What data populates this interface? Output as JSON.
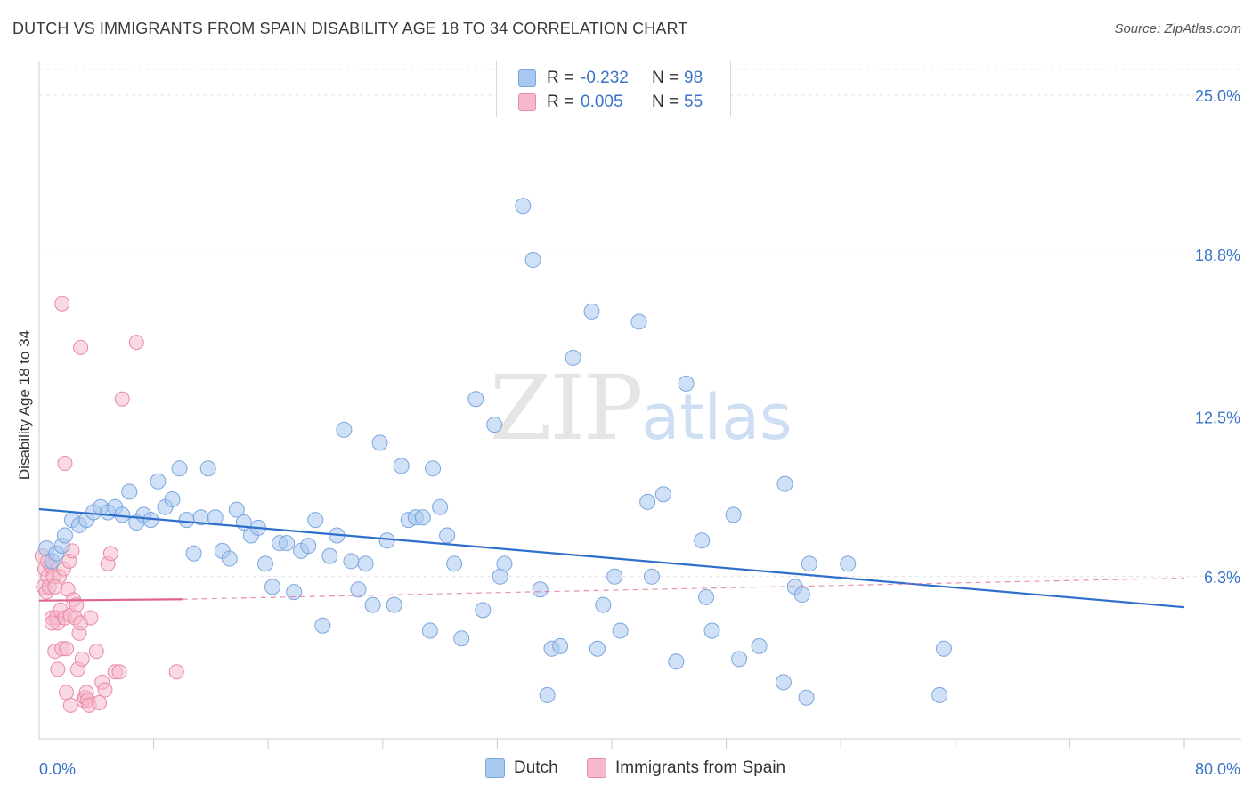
{
  "title": "DUTCH VS IMMIGRANTS FROM SPAIN DISABILITY AGE 18 TO 34 CORRELATION CHART",
  "source": "Source: ZipAtlas.com",
  "watermark": {
    "zip": "ZIP",
    "atlas": "atlas"
  },
  "legend": {
    "dutch": {
      "r_label": "R =",
      "r_value": "-0.232",
      "n_label": "N =",
      "n_value": "98"
    },
    "spain": {
      "r_label": "R =",
      "r_value": "0.005",
      "n_label": "N =",
      "n_value": "55"
    }
  },
  "bottom_legend": {
    "dutch": "Dutch",
    "spain": "Immigrants from Spain"
  },
  "colors": {
    "dutch_fill": "#a9c8f0",
    "dutch_stroke": "#7aa6de",
    "dutch_line": "#2f6fcc",
    "spain_fill": "#f6b9cc",
    "spain_stroke": "#e88aa6",
    "spain_line": "#e0628a",
    "grid": "#e3e3e3",
    "axis_text": "#3a74c9"
  },
  "chart_data": {
    "type": "scatter",
    "title": "DUTCH VS IMMIGRANTS FROM SPAIN DISABILITY AGE 18 TO 34 CORRELATION CHART",
    "xlabel": "",
    "ylabel": "Disability Age 18 to 34",
    "xlim": [
      0,
      80
    ],
    "ylim": [
      0,
      26.0
    ],
    "x_tick_labels": [
      "0.0%",
      "80.0%"
    ],
    "y_ticks": [
      6.3,
      12.5,
      18.8,
      25.0
    ],
    "y_tick_labels": [
      "6.3%",
      "12.5%",
      "18.8%",
      "25.0%"
    ],
    "series": [
      {
        "name": "Dutch",
        "points": [
          [
            0.5,
            7.4
          ],
          [
            0.9,
            6.9
          ],
          [
            1.2,
            7.2
          ],
          [
            1.6,
            7.5
          ],
          [
            1.8,
            7.9
          ],
          [
            2.3,
            8.5
          ],
          [
            2.8,
            8.3
          ],
          [
            3.3,
            8.5
          ],
          [
            3.8,
            8.8
          ],
          [
            4.3,
            9.0
          ],
          [
            4.8,
            8.8
          ],
          [
            5.3,
            9.0
          ],
          [
            5.8,
            8.7
          ],
          [
            6.3,
            9.6
          ],
          [
            6.8,
            8.4
          ],
          [
            7.3,
            8.7
          ],
          [
            7.8,
            8.5
          ],
          [
            8.3,
            10.0
          ],
          [
            8.8,
            9.0
          ],
          [
            9.3,
            9.3
          ],
          [
            9.8,
            10.5
          ],
          [
            10.3,
            8.5
          ],
          [
            10.8,
            7.2
          ],
          [
            11.3,
            8.6
          ],
          [
            11.8,
            10.5
          ],
          [
            12.3,
            8.6
          ],
          [
            12.8,
            7.3
          ],
          [
            13.3,
            7.0
          ],
          [
            13.8,
            8.9
          ],
          [
            14.3,
            8.4
          ],
          [
            14.8,
            7.9
          ],
          [
            15.3,
            8.2
          ],
          [
            15.8,
            6.8
          ],
          [
            16.3,
            5.9
          ],
          [
            16.8,
            7.6
          ],
          [
            17.3,
            7.6
          ],
          [
            17.8,
            5.7
          ],
          [
            18.3,
            7.3
          ],
          [
            18.8,
            7.5
          ],
          [
            19.3,
            8.5
          ],
          [
            19.8,
            4.4
          ],
          [
            20.3,
            7.1
          ],
          [
            20.8,
            7.9
          ],
          [
            21.3,
            12.0
          ],
          [
            21.8,
            6.9
          ],
          [
            22.3,
            5.8
          ],
          [
            22.8,
            6.8
          ],
          [
            23.3,
            5.2
          ],
          [
            23.8,
            11.5
          ],
          [
            24.3,
            7.7
          ],
          [
            24.8,
            5.2
          ],
          [
            25.3,
            10.6
          ],
          [
            25.8,
            8.5
          ],
          [
            26.3,
            8.6
          ],
          [
            26.8,
            8.6
          ],
          [
            27.3,
            4.2
          ],
          [
            27.5,
            10.5
          ],
          [
            28.0,
            9.0
          ],
          [
            28.5,
            7.9
          ],
          [
            29.0,
            6.8
          ],
          [
            29.5,
            3.9
          ],
          [
            30.5,
            13.2
          ],
          [
            31.0,
            5.0
          ],
          [
            31.8,
            12.2
          ],
          [
            32.2,
            6.3
          ],
          [
            32.5,
            6.8
          ],
          [
            33.8,
            20.7
          ],
          [
            34.5,
            18.6
          ],
          [
            35.0,
            5.8
          ],
          [
            35.5,
            1.7
          ],
          [
            35.8,
            3.5
          ],
          [
            36.4,
            3.6
          ],
          [
            37.3,
            14.8
          ],
          [
            38.6,
            16.6
          ],
          [
            39.0,
            3.5
          ],
          [
            39.4,
            5.2
          ],
          [
            40.2,
            6.3
          ],
          [
            40.6,
            4.2
          ],
          [
            41.9,
            16.2
          ],
          [
            42.5,
            9.2
          ],
          [
            42.8,
            6.3
          ],
          [
            43.6,
            9.5
          ],
          [
            44.5,
            3.0
          ],
          [
            45.2,
            13.8
          ],
          [
            46.3,
            7.7
          ],
          [
            46.6,
            5.5
          ],
          [
            47.0,
            4.2
          ],
          [
            48.5,
            8.7
          ],
          [
            48.9,
            3.1
          ],
          [
            50.3,
            3.6
          ],
          [
            52.0,
            2.2
          ],
          [
            52.1,
            9.9
          ],
          [
            52.8,
            5.9
          ],
          [
            53.3,
            5.6
          ],
          [
            53.6,
            1.6
          ],
          [
            53.8,
            6.8
          ],
          [
            56.5,
            6.8
          ],
          [
            62.9,
            1.7
          ],
          [
            63.2,
            3.5
          ]
        ],
        "regression": {
          "x": [
            0,
            80
          ],
          "y": [
            8.92,
            5.11
          ]
        }
      },
      {
        "name": "Immigrants from Spain",
        "points": [
          [
            0.2,
            7.1
          ],
          [
            0.3,
            5.9
          ],
          [
            0.4,
            6.6
          ],
          [
            0.5,
            5.7
          ],
          [
            0.6,
            6.3
          ],
          [
            0.7,
            5.9
          ],
          [
            0.8,
            6.7
          ],
          [
            0.9,
            4.7
          ],
          [
            1.0,
            6.3
          ],
          [
            1.1,
            3.4
          ],
          [
            1.2,
            4.7
          ],
          [
            1.3,
            4.5
          ],
          [
            1.4,
            6.3
          ],
          [
            1.5,
            5.0
          ],
          [
            1.6,
            3.5
          ],
          [
            1.7,
            6.6
          ],
          [
            1.8,
            4.7
          ],
          [
            1.9,
            1.8
          ],
          [
            2.0,
            5.8
          ],
          [
            2.1,
            6.9
          ],
          [
            2.2,
            4.8
          ],
          [
            2.3,
            7.3
          ],
          [
            2.4,
            5.4
          ],
          [
            2.5,
            4.7
          ],
          [
            2.6,
            5.2
          ],
          [
            2.7,
            2.7
          ],
          [
            2.8,
            4.1
          ],
          [
            2.9,
            4.5
          ],
          [
            3.0,
            3.1
          ],
          [
            3.1,
            1.5
          ],
          [
            3.2,
            1.6
          ],
          [
            3.3,
            1.8
          ],
          [
            3.4,
            1.5
          ],
          [
            3.5,
            1.3
          ],
          [
            4.0,
            3.4
          ],
          [
            4.2,
            1.4
          ],
          [
            4.4,
            2.2
          ],
          [
            4.6,
            1.9
          ],
          [
            4.8,
            6.8
          ],
          [
            5.0,
            7.2
          ],
          [
            5.3,
            2.6
          ],
          [
            5.6,
            2.6
          ],
          [
            1.6,
            16.9
          ],
          [
            2.9,
            15.2
          ],
          [
            6.8,
            15.4
          ],
          [
            5.8,
            13.2
          ],
          [
            1.8,
            10.7
          ],
          [
            9.6,
            2.6
          ],
          [
            1.1,
            5.9
          ],
          [
            0.6,
            6.9
          ],
          [
            1.3,
            2.7
          ],
          [
            1.9,
            3.5
          ],
          [
            2.2,
            1.3
          ],
          [
            3.6,
            4.7
          ],
          [
            0.9,
            4.5
          ]
        ],
        "regression": {
          "x": [
            0,
            10
          ],
          "y": [
            5.37,
            5.42
          ]
        },
        "regression_extension": {
          "x": [
            10,
            80
          ],
          "y": [
            5.42,
            6.24
          ]
        }
      }
    ]
  }
}
